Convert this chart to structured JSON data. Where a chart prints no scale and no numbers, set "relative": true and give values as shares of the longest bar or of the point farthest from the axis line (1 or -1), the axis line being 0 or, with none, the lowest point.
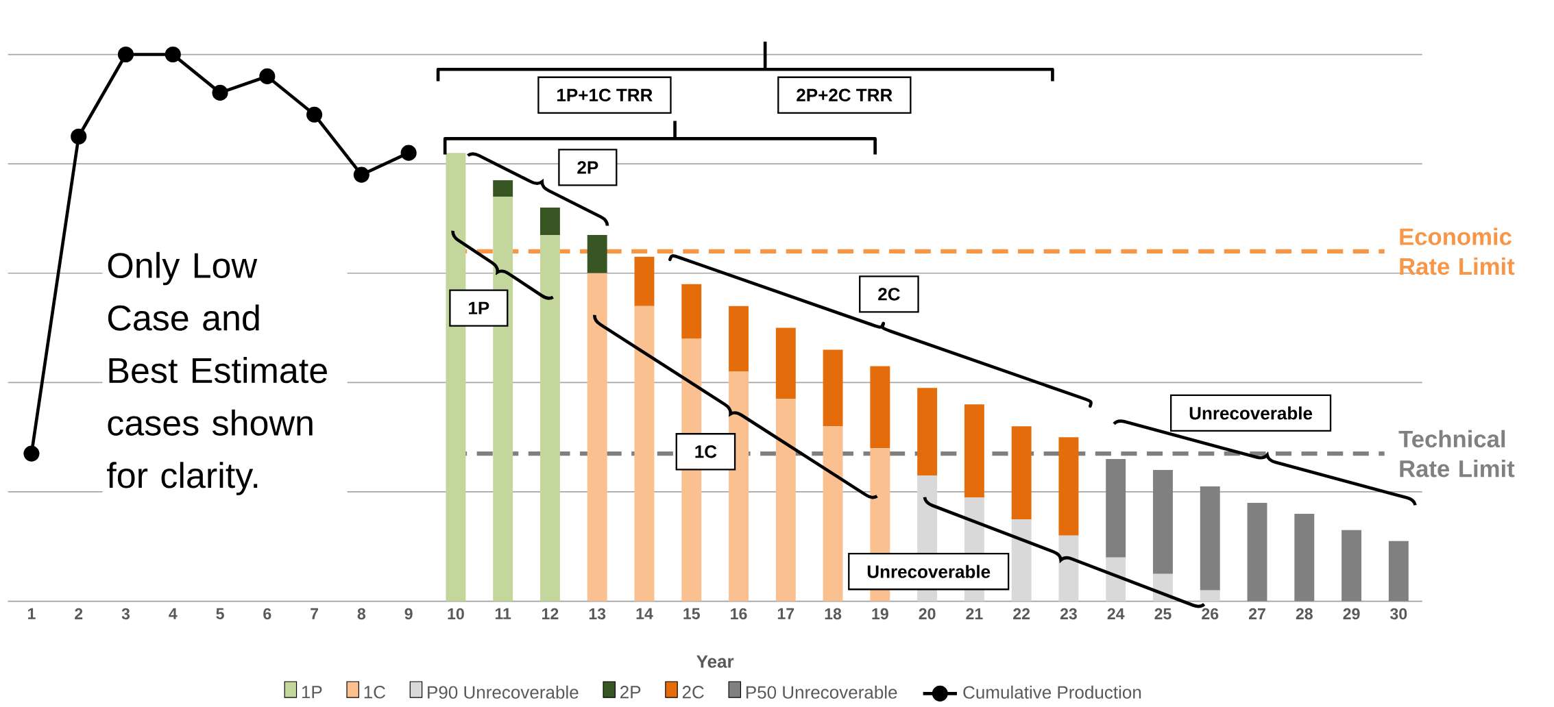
{
  "chart_data": {
    "type": "bar",
    "stacked": true,
    "relative": true,
    "grid": "y",
    "legend": "bottom",
    "xlabel": "Year",
    "categories": [
      "1",
      "2",
      "3",
      "4",
      "5",
      "6",
      "7",
      "8",
      "9",
      "10",
      "11",
      "12",
      "13",
      "14",
      "15",
      "16",
      "17",
      "18",
      "19",
      "20",
      "21",
      "22",
      "23",
      "24",
      "25",
      "26",
      "27",
      "28",
      "29",
      "30"
    ],
    "series": [
      {
        "name": "1P",
        "color": "#c3d69b",
        "values": [
          0,
          0,
          0,
          0,
          0,
          0,
          0,
          0,
          0,
          0.82,
          0.74,
          0.67,
          0,
          0,
          0,
          0,
          0,
          0,
          0,
          0,
          0,
          0,
          0,
          0,
          0,
          0,
          0,
          0,
          0,
          0
        ]
      },
      {
        "name": "1C",
        "color": "#fac090",
        "values": [
          0,
          0,
          0,
          0,
          0,
          0,
          0,
          0,
          0,
          0,
          0,
          0,
          0.6,
          0.54,
          0.48,
          0.42,
          0.37,
          0.32,
          0.28,
          0,
          0,
          0,
          0,
          0,
          0,
          0,
          0,
          0,
          0,
          0
        ]
      },
      {
        "name": "P90 Unrecoverable",
        "color": "#d9d9d9",
        "values": [
          0,
          0,
          0,
          0,
          0,
          0,
          0,
          0,
          0,
          0,
          0,
          0,
          0,
          0,
          0,
          0,
          0,
          0,
          0,
          0.23,
          0.19,
          0.15,
          0.12,
          0.08,
          0.05,
          0.02,
          0,
          0,
          0,
          0
        ]
      },
      {
        "name": "2P",
        "color": "#375623",
        "values": [
          0,
          0,
          0,
          0,
          0,
          0,
          0,
          0,
          0,
          0,
          0.03,
          0.05,
          0.07,
          0,
          0,
          0,
          0,
          0,
          0,
          0,
          0,
          0,
          0,
          0,
          0,
          0,
          0,
          0,
          0,
          0
        ]
      },
      {
        "name": "2C",
        "color": "#e46c0a",
        "values": [
          0,
          0,
          0,
          0,
          0,
          0,
          0,
          0,
          0,
          0,
          0,
          0,
          0,
          0.09,
          0.1,
          0.12,
          0.13,
          0.14,
          0.15,
          0.16,
          0.17,
          0.17,
          0.18,
          0,
          0,
          0,
          0,
          0,
          0,
          0
        ]
      },
      {
        "name": "P50 Unrecoverable",
        "color": "#808080",
        "values": [
          0,
          0,
          0,
          0,
          0,
          0,
          0,
          0,
          0,
          0,
          0,
          0,
          0,
          0,
          0,
          0,
          0,
          0,
          0,
          0,
          0,
          0,
          0,
          0.18,
          0.19,
          0.19,
          0.18,
          0.16,
          0.13,
          0.11
        ]
      },
      {
        "name": "Cumulative Production",
        "type": "line",
        "color": "#000000",
        "marker": "circle",
        "line_style": "solid",
        "values": [
          0.27,
          0.85,
          1,
          1,
          0.93,
          0.96,
          0.89,
          0.78,
          0.82,
          null,
          null,
          null,
          null,
          null,
          null,
          null,
          null,
          null,
          null,
          null,
          null,
          null,
          null,
          null,
          null,
          null,
          null,
          null,
          null,
          null
        ]
      }
    ],
    "ref_lines": [
      {
        "axis": "y",
        "value": 0.64,
        "label": "Economic Rate Limit",
        "color": "#f79646",
        "line_style": "dashed"
      },
      {
        "axis": "y",
        "value": 0.27,
        "label": "Technical Rate Limit",
        "color": "#808080",
        "line_style": "dashed"
      }
    ],
    "annotations": [
      "Only Low Case and Best Estimate cases shown for clarity.",
      "1P+1C TRR",
      "2P+2C TRR",
      "2P",
      "1P",
      "2C",
      "1C",
      "Unrecoverable",
      "Unrecoverable"
    ]
  }
}
